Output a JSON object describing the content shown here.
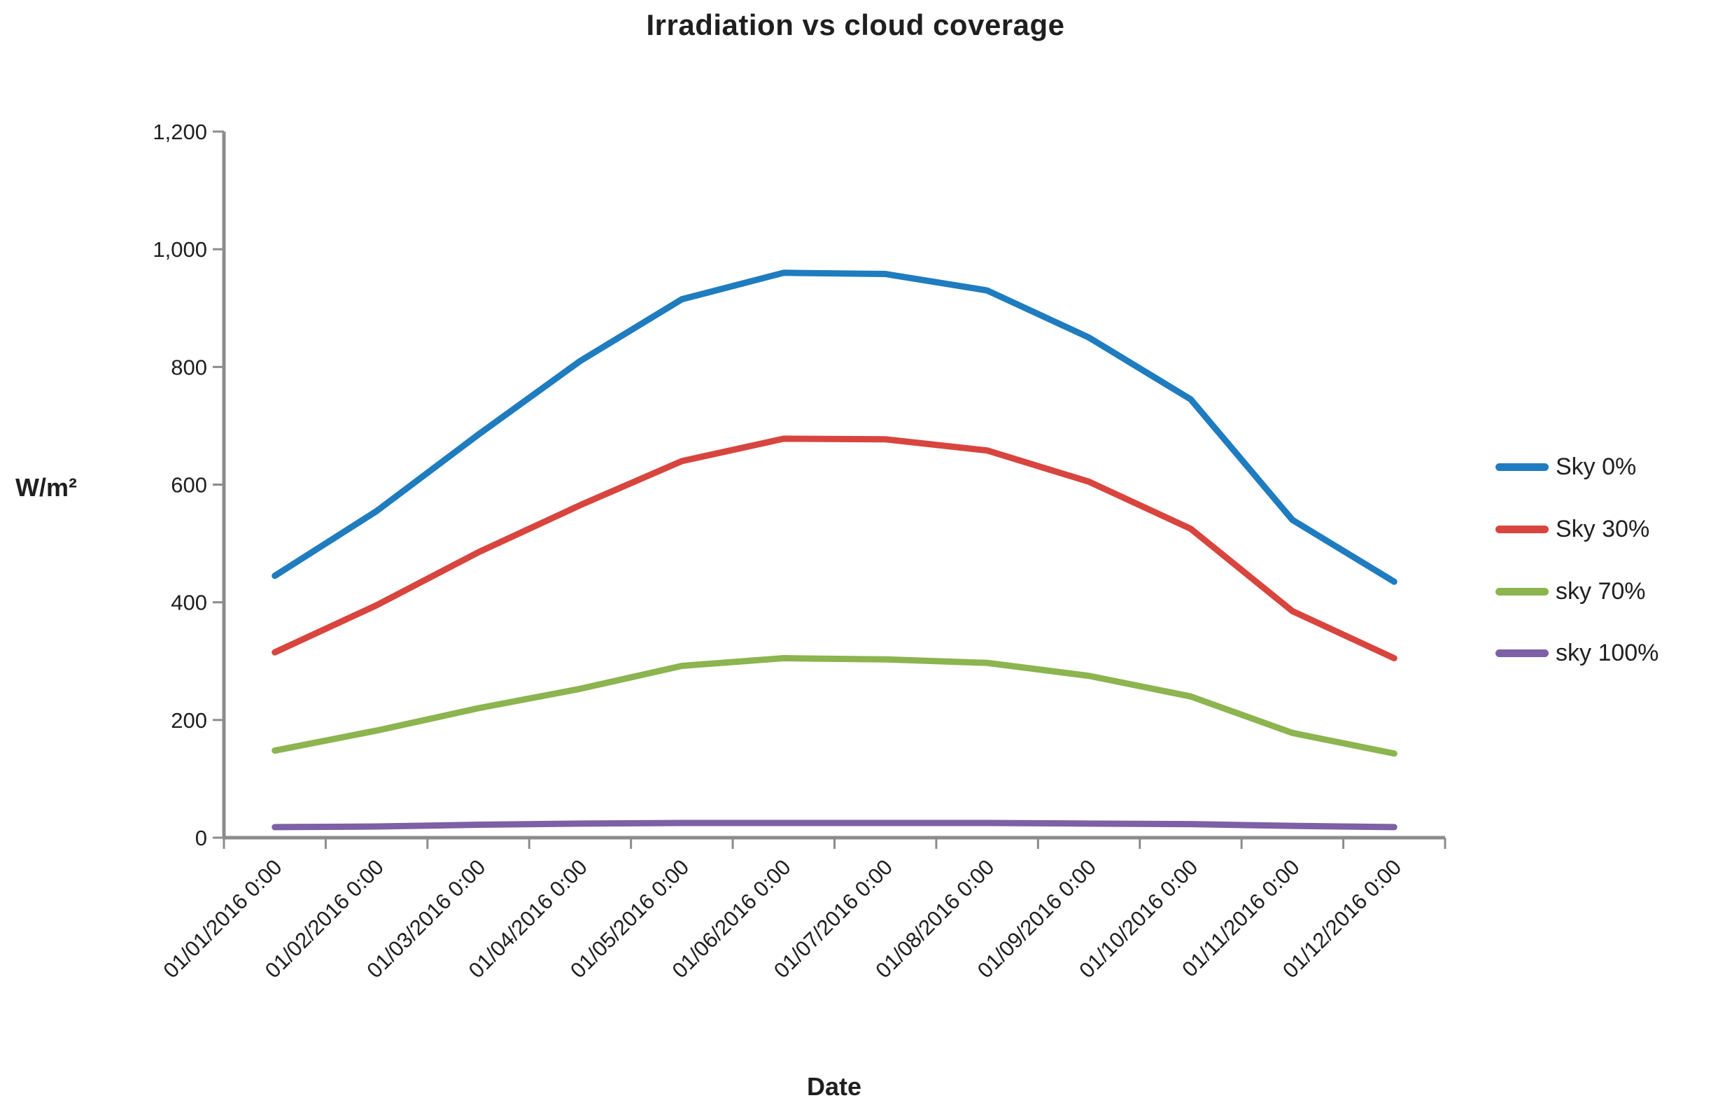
{
  "chart_data": {
    "type": "line",
    "title": "Irradiation vs cloud coverage",
    "xlabel": "Date",
    "ylabel": "W/m²",
    "ylim": [
      0,
      1200
    ],
    "ytick_step": 200,
    "y_tick_labels": [
      "0",
      "200",
      "400",
      "600",
      "800",
      "1,000",
      "1,200"
    ],
    "categories": [
      "01/01/2016 0:00",
      "01/02/2016 0:00",
      "01/03/2016 0:00",
      "01/04/2016 0:00",
      "01/05/2016 0:00",
      "01/06/2016 0:00",
      "01/07/2016 0:00",
      "01/08/2016 0:00",
      "01/09/2016 0:00",
      "01/10/2016 0:00",
      "01/11/2016 0:00",
      "01/12/2016 0:00"
    ],
    "series": [
      {
        "name": "Sky 0%",
        "color": "#1F7CBF",
        "values": [
          445,
          555,
          685,
          810,
          915,
          960,
          958,
          930,
          850,
          745,
          540,
          435
        ]
      },
      {
        "name": "Sky 30%",
        "color": "#D8453E",
        "values": [
          315,
          395,
          485,
          565,
          640,
          678,
          677,
          658,
          605,
          525,
          385,
          305
        ]
      },
      {
        "name": "sky 70%",
        "color": "#8CB44F",
        "values": [
          148,
          182,
          220,
          253,
          292,
          305,
          303,
          297,
          275,
          240,
          178,
          143
        ]
      },
      {
        "name": "sky 100%",
        "color": "#7D60A5",
        "values": [
          18,
          19,
          22,
          24,
          25,
          25,
          25,
          25,
          24,
          23,
          20,
          18
        ]
      }
    ],
    "legend_position": "right",
    "grid": false,
    "axis_color": "#8C8C8C"
  }
}
